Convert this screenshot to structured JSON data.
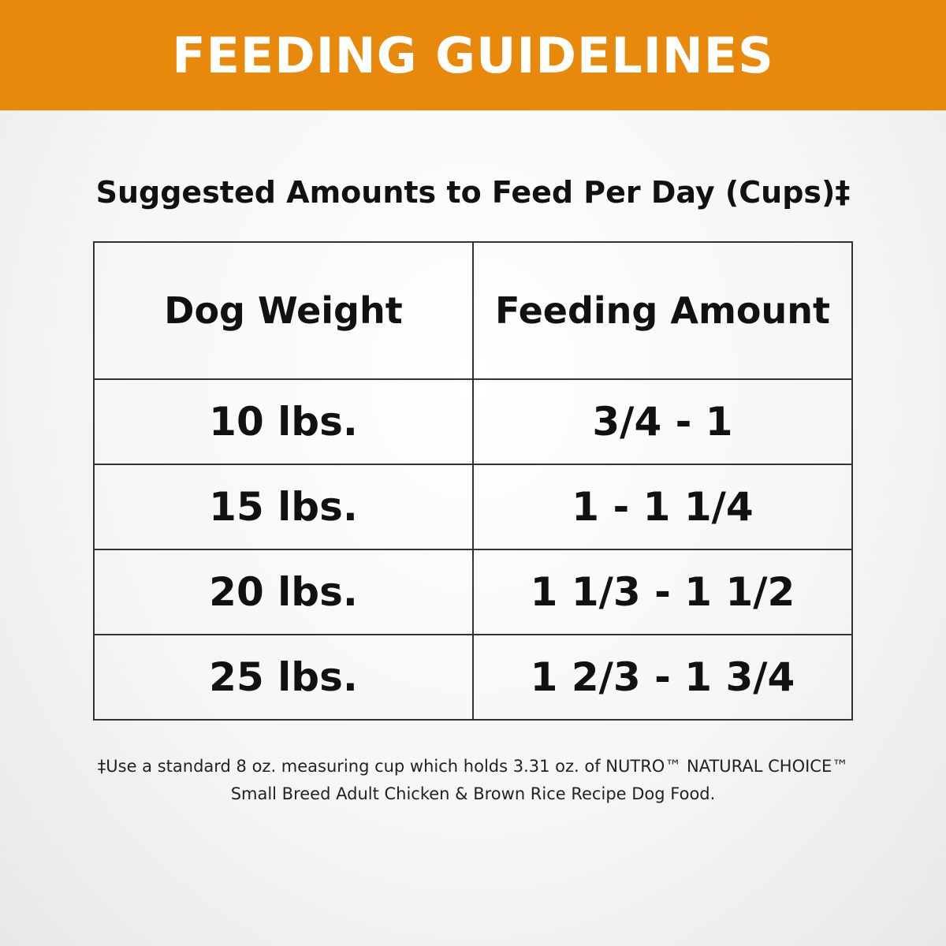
{
  "title": "FEEDING GUIDELINES",
  "subtitle": "Suggested Amounts to Feed Per Day (Cups)‡",
  "headers": [
    "Dog Weight",
    "Feeding Amount"
  ],
  "rows": [
    [
      "10 lbs.",
      "3/4 - 1"
    ],
    [
      "15 lbs.",
      "1 - 1 1/4"
    ],
    [
      "20 lbs.",
      "1 1/3 - 1 1/2"
    ],
    [
      "25 lbs.",
      "1 2/3 - 1 3/4"
    ]
  ],
  "footnote": [
    "‡Use a standard 8 oz. measuring cup which holds 3.31 oz. of NUTRO™ NATURAL CHOICE™",
    "Small Breed Adult Chicken & Brown Rice Recipe Dog Food."
  ],
  "colors": {
    "banner": "#e8890c"
  }
}
